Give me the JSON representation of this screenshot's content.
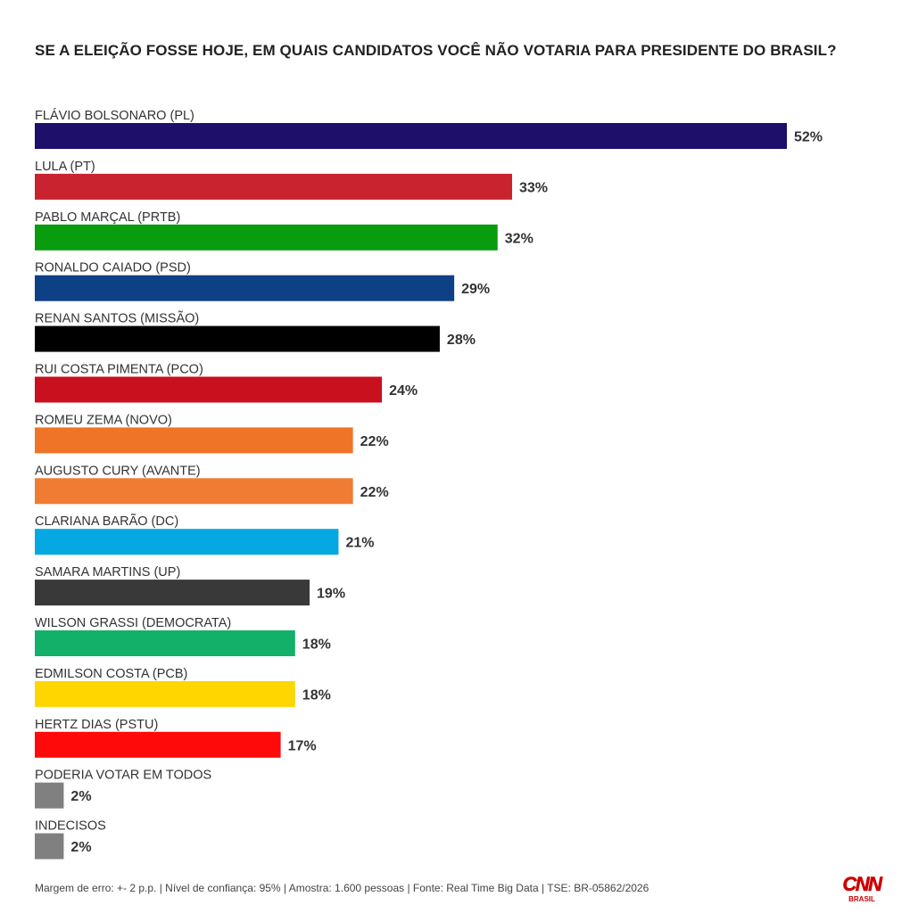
{
  "chart_data": {
    "type": "bar",
    "orientation": "horizontal",
    "title": "SE A ELEIÇÃO FOSSE HOJE, EM QUAIS CANDIDATOS VOCÊ NÃO VOTARIA PARA PRESIDENTE DO BRASIL?",
    "value_suffix": "%",
    "xlim": [
      0,
      52
    ],
    "grid": false,
    "legend": "none",
    "categories": [
      "FLÁVIO BOLSONARO (PL)",
      "LULA (PT)",
      "PABLO MARÇAL (PRTB)",
      "RONALDO CAIADO (PSD)",
      "RENAN SANTOS (MISSÃO)",
      "RUI COSTA PIMENTA (PCO)",
      "ROMEU ZEMA (NOVO)",
      "AUGUSTO CURY (AVANTE)",
      "CLARIANA BARÃO (DC)",
      "SAMARA MARTINS (UP)",
      "WILSON GRASSI (DEMOCRATA)",
      "EDMILSON COSTA (PCB)",
      "HERTZ DIAS (PSTU)",
      "PODERIA VOTAR EM TODOS",
      "INDECISOS"
    ],
    "values": [
      52,
      33,
      32,
      29,
      28,
      24,
      22,
      22,
      21,
      19,
      18,
      18,
      17,
      2,
      2
    ],
    "value_labels": [
      "52%",
      "33%",
      "32%",
      "29%",
      "28%",
      "24%",
      "22%",
      "22%",
      "21%",
      "19%",
      "18%",
      "18%",
      "17%",
      "2%",
      "2%"
    ],
    "colors": [
      "#1e0f6b",
      "#c8232f",
      "#0a9c0f",
      "#0d4084",
      "#000000",
      "#c8101f",
      "#f07428",
      "#f07c34",
      "#06a8e2",
      "#393939",
      "#13b06a",
      "#ffd600",
      "#ff0a0a",
      "#808080",
      "#808080"
    ]
  },
  "footer": {
    "note": "Margem de erro: +- 2 p.p. | Nível de confiança: 95% | Amostra: 1.600 pessoas | Fonte: Real Time Big Data | TSE: BR-05862/2026"
  },
  "logo": {
    "main": "CNN",
    "sub": "BRASIL",
    "color": "#cc0000"
  }
}
